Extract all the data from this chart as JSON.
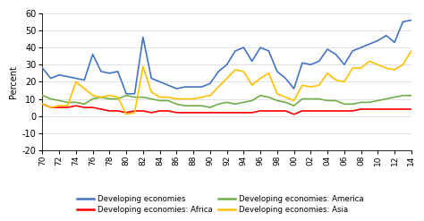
{
  "years": [
    1970,
    1971,
    1972,
    1973,
    1974,
    1975,
    1976,
    1977,
    1978,
    1979,
    1980,
    1981,
    1982,
    1983,
    1984,
    1985,
    1986,
    1987,
    1988,
    1989,
    1990,
    1991,
    1992,
    1993,
    1994,
    1995,
    1996,
    1997,
    1998,
    1999,
    2000,
    2001,
    2002,
    2003,
    2004,
    2005,
    2006,
    2007,
    2008,
    2009,
    2010,
    2011,
    2012,
    2013,
    2014
  ],
  "developing_economies": [
    28,
    22,
    24,
    23,
    22,
    21,
    36,
    26,
    25,
    26,
    13,
    13,
    46,
    22,
    20,
    18,
    16,
    17,
    17,
    17,
    19,
    26,
    30,
    38,
    40,
    32,
    40,
    38,
    26,
    22,
    16,
    31,
    30,
    32,
    39,
    36,
    30,
    38,
    40,
    42,
    44,
    47,
    43,
    55,
    56
  ],
  "africa": [
    7,
    5,
    5,
    5,
    6,
    5,
    5,
    4,
    3,
    3,
    2,
    3,
    3,
    2,
    3,
    3,
    2,
    2,
    2,
    2,
    2,
    2,
    2,
    2,
    2,
    2,
    3,
    3,
    3,
    3,
    1,
    3,
    3,
    3,
    3,
    3,
    3,
    3,
    4,
    4,
    4,
    4,
    4,
    4,
    4
  ],
  "america": [
    12,
    10,
    9,
    8,
    8,
    7,
    10,
    11,
    10,
    10,
    12,
    11,
    11,
    10,
    9,
    9,
    7,
    6,
    6,
    6,
    5,
    7,
    8,
    7,
    8,
    9,
    12,
    11,
    9,
    8,
    6,
    10,
    10,
    10,
    9,
    9,
    7,
    7,
    8,
    8,
    9,
    10,
    11,
    12,
    12
  ],
  "asia": [
    7,
    5,
    6,
    6,
    20,
    16,
    12,
    11,
    12,
    11,
    1,
    2,
    29,
    14,
    11,
    11,
    10,
    10,
    10,
    11,
    12,
    17,
    22,
    27,
    26,
    18,
    22,
    25,
    13,
    11,
    9,
    18,
    17,
    18,
    25,
    21,
    20,
    28,
    28,
    32,
    30,
    28,
    27,
    30,
    38
  ],
  "colors": {
    "developing_economies": "#4472C4",
    "africa": "#FF0000",
    "america": "#70AD47",
    "asia": "#FFC000"
  },
  "ylabel": "Percent",
  "ylim": [
    -20,
    60
  ],
  "yticks": [
    -20,
    -10,
    0,
    10,
    20,
    30,
    40,
    50,
    60
  ],
  "xlim": [
    1970,
    2014
  ],
  "xtick_step": 2,
  "legend": [
    {
      "label": "Developing economies",
      "color": "#4472C4"
    },
    {
      "label": "Developing economies: Africa",
      "color": "#FF0000"
    },
    {
      "label": "Developing economies: America",
      "color": "#70AD47"
    },
    {
      "label": "Developing economies: Asia",
      "color": "#FFC000"
    }
  ],
  "background_color": "#FFFFFF",
  "grid_color": "#D3D3D3"
}
